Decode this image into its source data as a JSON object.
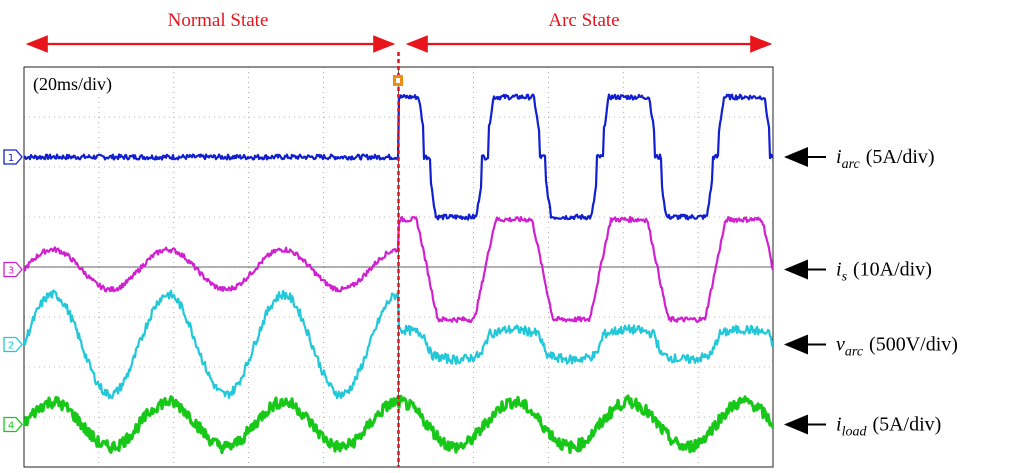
{
  "chart_data": {
    "type": "line",
    "timebase": "(20ms/div)",
    "phases": [
      {
        "name": "Normal State",
        "from_div": 0,
        "to_div": 5
      },
      {
        "name": "Arc State",
        "from_div": 5,
        "to_div": 10
      }
    ],
    "arc_onset_div": 5,
    "x_divisions": 10,
    "y_divisions": 8,
    "grid": true,
    "series": [
      {
        "name": "i_arc",
        "channel": "1",
        "scale": "(5A/div)",
        "label_main": "i",
        "label_sub": "arc",
        "label_scale": "(5A/div)",
        "color": "#1020d0",
        "offset_div": 6.2,
        "normal_amplitude_div": 0,
        "arc_amplitude_div": 1.2,
        "periods": 6.5
      },
      {
        "name": "i_s",
        "channel": "3",
        "scale": "(10A/div)",
        "label_main": "i",
        "label_sub": "s",
        "label_scale": "(10A/div)",
        "color": "#d020d0",
        "offset_div": 3.95,
        "normal_amplitude_div": 0.4,
        "arc_amplitude_div": 1.0,
        "periods": 6.5
      },
      {
        "name": "v_arc",
        "channel": "2",
        "scale": "(500V/div)",
        "label_main": "v",
        "label_sub": "arc",
        "label_scale": "(500V/div)",
        "color": "#22c8d8",
        "offset_div": 2.45,
        "normal_amplitude_div": 1.0,
        "arc_amplitude_div": 0.3,
        "periods": 6.5
      },
      {
        "name": "i_load",
        "channel": "4",
        "scale": "(5A/div)",
        "label_main": "i",
        "label_sub": "load",
        "label_scale": "(5A/div)",
        "color": "#18c818",
        "offset_div": 0.85,
        "normal_amplitude_div": 0.45,
        "arc_amplitude_div": 0.45,
        "periods": 6.5
      }
    ],
    "colors": {
      "phase_marker": "#e8141c",
      "trigger": "#f08c14",
      "grid": "#555555"
    }
  }
}
